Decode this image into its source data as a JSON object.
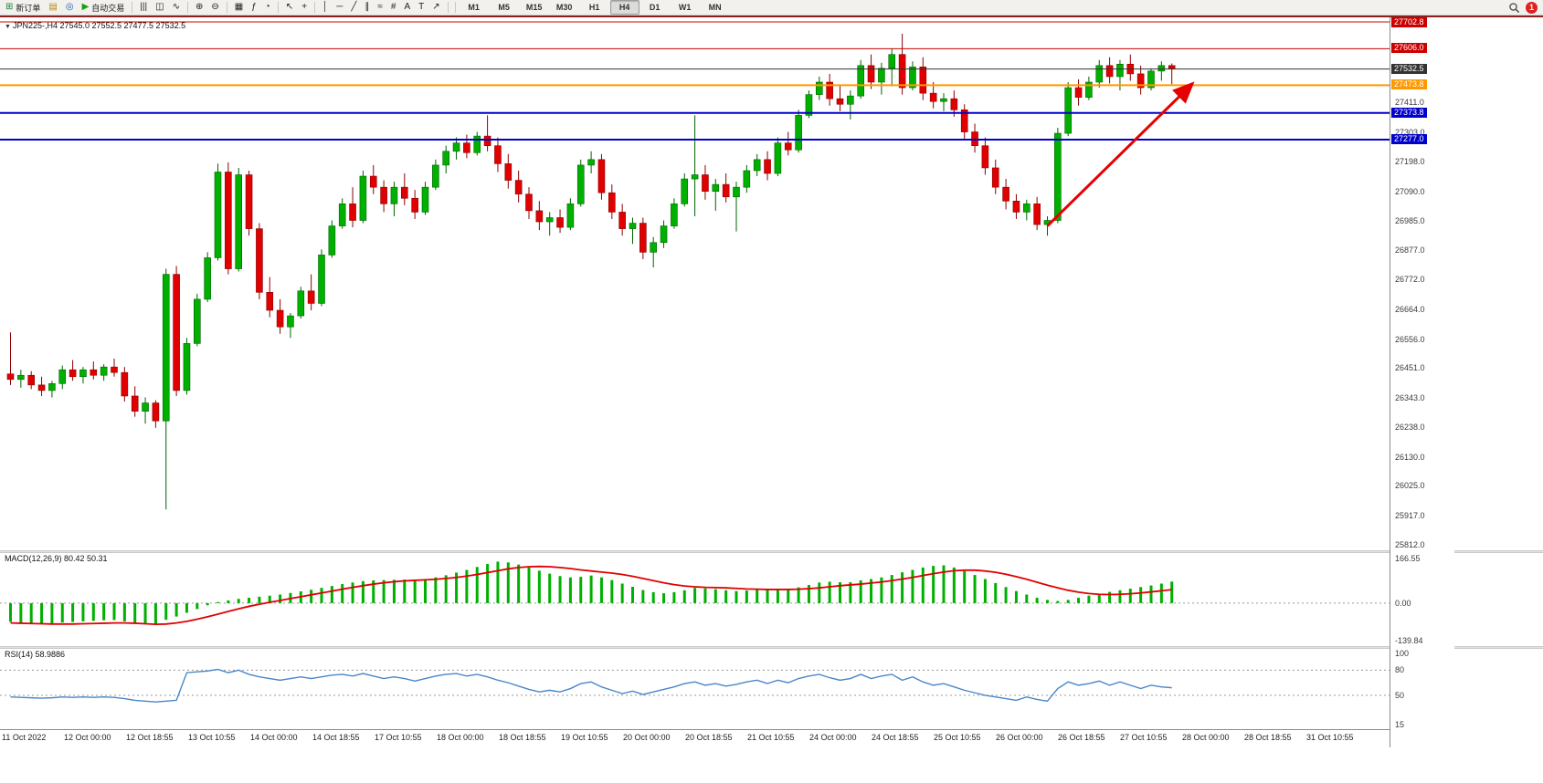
{
  "toolbar": {
    "buttons": [
      {
        "name": "new-order-button",
        "glyph": "⊞",
        "glyph_color": "#1a7f37",
        "label": "新订单"
      },
      {
        "name": "charts-button",
        "glyph": "▤",
        "glyph_color": "#b8860b"
      },
      {
        "name": "profiles-button",
        "glyph": "◎",
        "glyph_color": "#1a5fb4"
      },
      {
        "name": "auto-trading-button",
        "glyph": "▶",
        "glyph_color": "#13a10e",
        "label": "自动交易"
      },
      {
        "sep": true
      },
      {
        "name": "bar-chart-button",
        "glyph": "|||"
      },
      {
        "name": "candlestick-chart-button",
        "glyph": "◫"
      },
      {
        "name": "line-chart-button",
        "glyph": "∿"
      },
      {
        "sep": true
      },
      {
        "name": "zoom-in-button",
        "glyph": "⊕"
      },
      {
        "name": "zoom-out-button",
        "glyph": "⊖"
      },
      {
        "sep": true
      },
      {
        "name": "tile-windows-button",
        "glyph": "▦"
      },
      {
        "name": "indicators-button",
        "glyph": "ƒ"
      },
      {
        "name": "periods-menu-button",
        "glyph": "◔"
      },
      {
        "sep": true
      },
      {
        "name": "cursor-button",
        "glyph": "↖"
      },
      {
        "name": "crosshair-button",
        "glyph": "+"
      },
      {
        "sep": true
      },
      {
        "name": "vertical-line-button",
        "glyph": "│"
      },
      {
        "name": "horizontal-line-button",
        "glyph": "─"
      },
      {
        "name": "trendline-button",
        "glyph": "╱"
      },
      {
        "name": "channel-button",
        "glyph": "∥"
      },
      {
        "name": "fibonacci-button",
        "glyph": "≈"
      },
      {
        "name": "grid-button",
        "glyph": "#"
      },
      {
        "name": "text-button",
        "glyph": "A"
      },
      {
        "name": "text-label-button",
        "glyph": "T"
      },
      {
        "name": "arrows-button",
        "glyph": "↗"
      },
      {
        "sep": true
      }
    ],
    "timeframes": [
      "M1",
      "M5",
      "M15",
      "M30",
      "H1",
      "H4",
      "D1",
      "W1",
      "MN"
    ],
    "active_timeframe": "H4",
    "alert_badge": "1"
  },
  "chart": {
    "title": "JPN225-,H4 27545.0 27552.5 27477.5 27532.5",
    "symbol": "JPN225-",
    "period": "H4"
  },
  "chart_data": {
    "type": "candlestick",
    "symbol": "JPN225-",
    "timeframe": "H4",
    "current_bar": {
      "open": 27545.0,
      "high": 27552.5,
      "low": 27477.5,
      "close": 27532.5
    },
    "y_axis": {
      "min": 25812.0,
      "max": 27702.8,
      "plain_labels": [
        27411.0,
        27303.0,
        27198.0,
        27090.0,
        26985.0,
        26877.0,
        26772.0,
        26664.0,
        26556.0,
        26451.0,
        26343.0,
        26238.0,
        26130.0,
        26025.0,
        25917.0,
        25812.0
      ]
    },
    "levels": [
      {
        "label": "27702.8",
        "value": 27702.8,
        "color": "#cc0000",
        "width": 1
      },
      {
        "label": "27606.0",
        "value": 27606.0,
        "color": "#cc0000",
        "width": 1
      },
      {
        "label": "27532.5",
        "value": 27532.5,
        "color": "#333333",
        "width": 1
      },
      {
        "label": "27473.8",
        "value": 27473.8,
        "color": "#ff9900",
        "width": 2
      },
      {
        "label": "27373.8",
        "value": 27373.8,
        "color": "#0000cc",
        "width": 2
      },
      {
        "label": "27277.0",
        "value": 27277.0,
        "color": "#0000cc",
        "width": 2
      }
    ],
    "candles": [
      [
        26430,
        26580,
        26390,
        26410
      ],
      [
        26410,
        26445,
        26380,
        26425
      ],
      [
        26425,
        26440,
        26375,
        26390
      ],
      [
        26390,
        26420,
        26350,
        26370
      ],
      [
        26370,
        26405,
        26345,
        26395
      ],
      [
        26395,
        26460,
        26375,
        26445
      ],
      [
        26445,
        26480,
        26405,
        26420
      ],
      [
        26420,
        26455,
        26395,
        26445
      ],
      [
        26445,
        26475,
        26410,
        26425
      ],
      [
        26425,
        26465,
        26405,
        26455
      ],
      [
        26455,
        26485,
        26420,
        26435
      ],
      [
        26435,
        26455,
        26330,
        26350
      ],
      [
        26350,
        26385,
        26275,
        26295
      ],
      [
        26295,
        26345,
        26250,
        26325
      ],
      [
        26325,
        26335,
        26235,
        26260
      ],
      [
        26260,
        26810,
        25940,
        26790
      ],
      [
        26790,
        26820,
        26350,
        26370
      ],
      [
        26370,
        26560,
        26355,
        26540
      ],
      [
        26540,
        26720,
        26530,
        26700
      ],
      [
        26700,
        26870,
        26690,
        26850
      ],
      [
        26850,
        27190,
        26840,
        27160
      ],
      [
        27160,
        27195,
        26790,
        26810
      ],
      [
        26810,
        27175,
        26800,
        27150
      ],
      [
        27150,
        27165,
        26930,
        26955
      ],
      [
        26955,
        26975,
        26700,
        26725
      ],
      [
        26725,
        26780,
        26635,
        26660
      ],
      [
        26660,
        26700,
        26575,
        26600
      ],
      [
        26600,
        26650,
        26560,
        26640
      ],
      [
        26640,
        26745,
        26630,
        26730
      ],
      [
        26730,
        26790,
        26660,
        26685
      ],
      [
        26685,
        26880,
        26675,
        26860
      ],
      [
        26860,
        26985,
        26850,
        26965
      ],
      [
        26965,
        27065,
        26955,
        27045
      ],
      [
        27045,
        27105,
        26960,
        26985
      ],
      [
        26985,
        27165,
        26975,
        27145
      ],
      [
        27145,
        27185,
        27080,
        27105
      ],
      [
        27105,
        27130,
        27015,
        27045
      ],
      [
        27045,
        27125,
        27000,
        27105
      ],
      [
        27105,
        27155,
        27040,
        27065
      ],
      [
        27065,
        27095,
        26990,
        27015
      ],
      [
        27015,
        27125,
        27005,
        27105
      ],
      [
        27105,
        27205,
        27095,
        27185
      ],
      [
        27185,
        27255,
        27155,
        27235
      ],
      [
        27235,
        27285,
        27205,
        27265
      ],
      [
        27265,
        27295,
        27210,
        27230
      ],
      [
        27230,
        27305,
        27220,
        27290
      ],
      [
        27290,
        27365,
        27235,
        27255
      ],
      [
        27255,
        27285,
        27160,
        27190
      ],
      [
        27190,
        27225,
        27100,
        27130
      ],
      [
        27130,
        27165,
        27050,
        27080
      ],
      [
        27080,
        27105,
        26990,
        27020
      ],
      [
        27020,
        27055,
        26950,
        26980
      ],
      [
        26980,
        27015,
        26930,
        26995
      ],
      [
        26995,
        27025,
        26940,
        26960
      ],
      [
        26960,
        27065,
        26950,
        27045
      ],
      [
        27045,
        27205,
        27035,
        27185
      ],
      [
        27185,
        27235,
        27155,
        27205
      ],
      [
        27205,
        27225,
        27060,
        27085
      ],
      [
        27085,
        27115,
        26990,
        27015
      ],
      [
        27015,
        27045,
        26930,
        26955
      ],
      [
        26955,
        26995,
        26900,
        26975
      ],
      [
        26975,
        26995,
        26845,
        26870
      ],
      [
        26870,
        26925,
        26815,
        26905
      ],
      [
        26905,
        26985,
        26885,
        26965
      ],
      [
        26965,
        27065,
        26955,
        27045
      ],
      [
        27045,
        27155,
        27035,
        27135
      ],
      [
        27135,
        27365,
        27000,
        27150
      ],
      [
        27150,
        27185,
        27060,
        27090
      ],
      [
        27090,
        27135,
        27020,
        27115
      ],
      [
        27115,
        27155,
        27050,
        27070
      ],
      [
        27070,
        27125,
        26945,
        27105
      ],
      [
        27105,
        27185,
        27085,
        27165
      ],
      [
        27165,
        27225,
        27145,
        27205
      ],
      [
        27205,
        27235,
        27130,
        27155
      ],
      [
        27155,
        27285,
        27145,
        27265
      ],
      [
        27265,
        27305,
        27220,
        27240
      ],
      [
        27240,
        27385,
        27230,
        27365
      ],
      [
        27365,
        27455,
        27355,
        27440
      ],
      [
        27440,
        27505,
        27420,
        27485
      ],
      [
        27485,
        27515,
        27400,
        27425
      ],
      [
        27425,
        27475,
        27380,
        27405
      ],
      [
        27405,
        27455,
        27350,
        27435
      ],
      [
        27435,
        27565,
        27425,
        27545
      ],
      [
        27545,
        27585,
        27460,
        27485
      ],
      [
        27485,
        27555,
        27440,
        27535
      ],
      [
        27535,
        27605,
        27470,
        27585
      ],
      [
        27585,
        27660,
        27440,
        27465
      ],
      [
        27465,
        27560,
        27455,
        27540
      ],
      [
        27540,
        27575,
        27420,
        27445
      ],
      [
        27445,
        27485,
        27390,
        27415
      ],
      [
        27415,
        27445,
        27380,
        27425
      ],
      [
        27425,
        27455,
        27360,
        27385
      ],
      [
        27385,
        27405,
        27280,
        27305
      ],
      [
        27305,
        27335,
        27230,
        27255
      ],
      [
        27255,
        27285,
        27150,
        27175
      ],
      [
        27175,
        27205,
        27080,
        27105
      ],
      [
        27105,
        27135,
        27025,
        27055
      ],
      [
        27055,
        27080,
        26990,
        27015
      ],
      [
        27015,
        27060,
        26985,
        27045
      ],
      [
        27045,
        27070,
        26950,
        26970
      ],
      [
        26970,
        27000,
        26930,
        26985
      ],
      [
        26985,
        27320,
        26975,
        27300
      ],
      [
        27300,
        27485,
        27290,
        27465
      ],
      [
        27465,
        27495,
        27400,
        27430
      ],
      [
        27430,
        27505,
        27420,
        27485
      ],
      [
        27485,
        27565,
        27465,
        27545
      ],
      [
        27545,
        27575,
        27480,
        27505
      ],
      [
        27505,
        27565,
        27455,
        27550
      ],
      [
        27550,
        27585,
        27490,
        27515
      ],
      [
        27515,
        27545,
        27440,
        27465
      ],
      [
        27465,
        27535,
        27455,
        27525
      ],
      [
        27525,
        27560,
        27490,
        27545
      ],
      [
        27545,
        27552.5,
        27477.5,
        27532.5
      ]
    ],
    "indicators": {
      "macd": {
        "label": "MACD(12,26,9) 80.42 50.31",
        "params": "12,26,9",
        "main": 80.42,
        "signal": 50.31,
        "axis": [
          166.55,
          0.0,
          -139.84
        ],
        "histogram": [
          -70,
          -72,
          -74,
          -76,
          -75,
          -72,
          -70,
          -68,
          -66,
          -64,
          -63,
          -68,
          -75,
          -78,
          -80,
          -62,
          -50,
          -36,
          -22,
          -8,
          4,
          10,
          16,
          20,
          24,
          28,
          32,
          38,
          44,
          50,
          57,
          64,
          71,
          77,
          82,
          85,
          86,
          87,
          88,
          88,
          90,
          96,
          104,
          114,
          124,
          135,
          146,
          155,
          152,
          144,
          133,
          121,
          110,
          101,
          96,
          98,
          103,
          96,
          86,
          73,
          61,
          49,
          41,
          37,
          41,
          48,
          57,
          55,
          52,
          48,
          45,
          47,
          51,
          50,
          53,
          53,
          59,
          68,
          77,
          80,
          78,
          78,
          85,
          90,
          96,
          105,
          115,
          124,
          133,
          139,
          141,
          133,
          120,
          105,
          90,
          75,
          60,
          45,
          32,
          20,
          12,
          8,
          12,
          20,
          28,
          35,
          42,
          48,
          54,
          60,
          66,
          73,
          80.42
        ],
        "signal_line": [
          -74,
          -75,
          -76,
          -77,
          -78,
          -78,
          -78,
          -77,
          -76,
          -75,
          -74,
          -74,
          -75,
          -77,
          -79,
          -78,
          -74,
          -68,
          -60,
          -51,
          -41,
          -31,
          -21,
          -12,
          -4,
          3,
          10,
          17,
          24,
          31,
          38,
          45,
          52,
          59,
          65,
          71,
          76,
          80,
          83,
          85,
          87,
          89,
          92,
          96,
          101,
          107,
          114,
          121,
          128,
          133,
          136,
          137,
          136,
          133,
          129,
          124,
          120,
          116,
          112,
          107,
          100,
          92,
          84,
          76,
          69,
          64,
          61,
          59,
          58,
          57,
          55,
          53,
          52,
          51,
          51,
          51,
          52,
          54,
          57,
          61,
          65,
          68,
          71,
          75,
          79,
          84,
          90,
          96,
          103,
          110,
          116,
          121,
          123,
          123,
          120,
          115,
          108,
          99,
          89,
          78,
          67,
          57,
          48,
          41,
          36,
          33,
          32,
          33,
          35,
          38,
          42,
          46,
          50.31
        ]
      },
      "rsi": {
        "label": "RSI(14) 58.9886",
        "period": 14,
        "value": 58.9886,
        "axis": [
          100,
          80,
          50,
          15
        ],
        "level_lines": [
          80,
          50
        ],
        "values": [
          48,
          47.5,
          47,
          46.5,
          47,
          48,
          47.5,
          48,
          47.5,
          48,
          47.5,
          46,
          44,
          43,
          42,
          43,
          44,
          77,
          78,
          79,
          81,
          77,
          80,
          75,
          72,
          70,
          68,
          70,
          72,
          70,
          72,
          74,
          75,
          73,
          76,
          73,
          70,
          72,
          70,
          67,
          70,
          73,
          75,
          76,
          73,
          75,
          72,
          68,
          65,
          61,
          57,
          54,
          56,
          54,
          58,
          64,
          66,
          60,
          56,
          52,
          55,
          51,
          54,
          57,
          60,
          64,
          66,
          62,
          64,
          61,
          63,
          66,
          68,
          64,
          68,
          65,
          70,
          73,
          75,
          71,
          68,
          70,
          75,
          70,
          73,
          75,
          68,
          72,
          66,
          62,
          64,
          60,
          56,
          53,
          50,
          48,
          46,
          44,
          48,
          45,
          43,
          58,
          66,
          62,
          64,
          67,
          62,
          66,
          62,
          58,
          62,
          60,
          58.99
        ]
      }
    },
    "x_labels": [
      "11 Oct 2022",
      "12 Oct 00:00",
      "12 Oct 18:55",
      "13 Oct 10:55",
      "14 Oct 00:00",
      "14 Oct 18:55",
      "17 Oct 10:55",
      "18 Oct 00:00",
      "18 Oct 18:55",
      "19 Oct 10:55",
      "20 Oct 00:00",
      "20 Oct 18:55",
      "21 Oct 10:55",
      "24 Oct 00:00",
      "24 Oct 18:55",
      "25 Oct 10:55",
      "26 Oct 00:00",
      "26 Oct 18:55",
      "27 Oct 10:55",
      "28 Oct 00:00",
      "28 Oct 18:55",
      "31 Oct 10:55"
    ],
    "trend_arrow": {
      "from": {
        "index": 100,
        "price": 26965
      },
      "to": {
        "index": 114,
        "price": 27480
      },
      "color": "#e60000"
    },
    "colors": {
      "up": "#00b000",
      "up_edge": "#006400",
      "down": "#e00000",
      "down_edge": "#8b0000",
      "macd_hist": "#00b000",
      "macd_signal": "#e00000",
      "rsi_line": "#4a86c8"
    }
  }
}
